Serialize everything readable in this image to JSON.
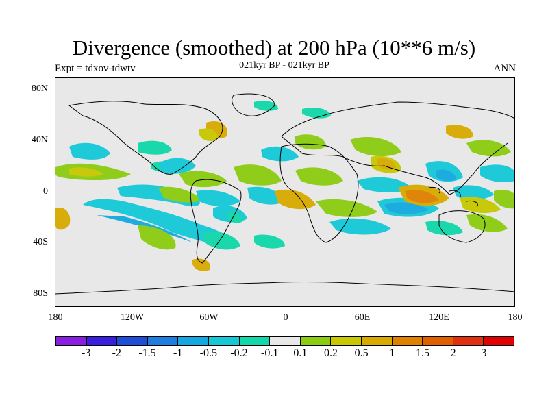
{
  "title": "Divergence (smoothed) at 200 hPa (10**6 m/s)",
  "subtitle": "021kyr BP - 021kyr BP",
  "experiment_label": "Expt = tdxov-tdwtv",
  "season_label": "ANN",
  "map": {
    "projection": "cylindrical equidistant",
    "background_color": "#e8e8e8",
    "lon_range": [
      -180,
      180
    ],
    "lat_range": [
      -90,
      90
    ],
    "y_ticks": [
      "80N",
      "40N",
      "0",
      "40S",
      "80S"
    ],
    "x_ticks": [
      "180",
      "120W",
      "60W",
      "0",
      "60E",
      "120E",
      "180"
    ]
  },
  "colorbar": {
    "colors": [
      "#8a1ee0",
      "#3a1ee0",
      "#1e4ed8",
      "#1e7ee0",
      "#14a8e0",
      "#14c8d8",
      "#10d8a8",
      "#e8e8e8",
      "#8ccc10",
      "#c8c800",
      "#d8aa00",
      "#e08000",
      "#e06000",
      "#e03010",
      "#e00000"
    ],
    "labels": [
      "-3",
      "-2",
      "-1.5",
      "-1",
      "-0.5",
      "-0.2",
      "-0.1",
      "0.1",
      "0.2",
      "0.5",
      "1",
      "1.5",
      "2",
      "3"
    ]
  }
}
